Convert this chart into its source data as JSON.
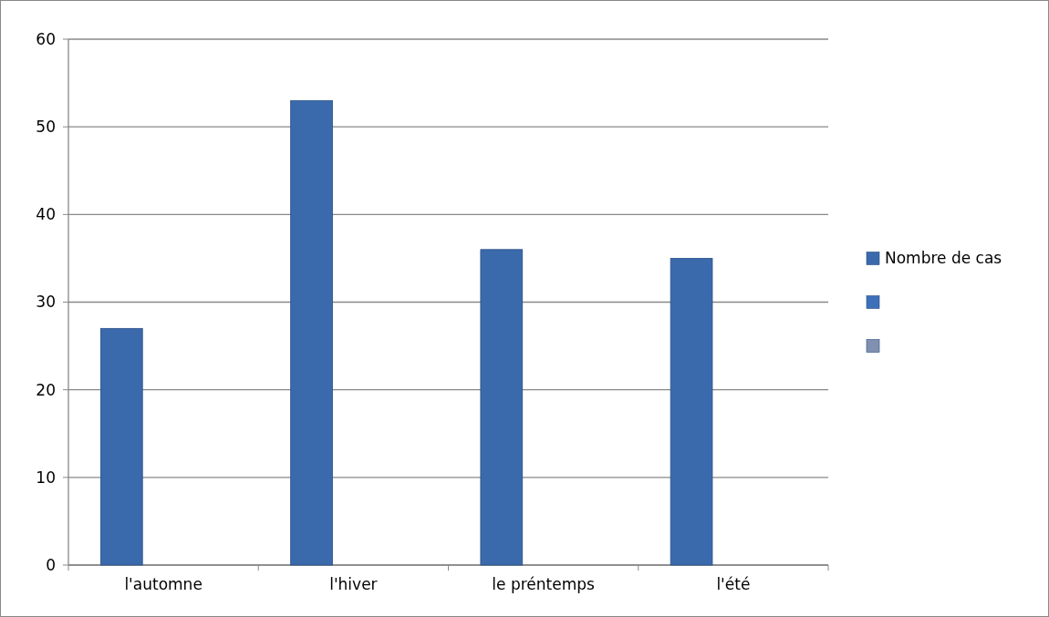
{
  "chart_data": {
    "type": "bar",
    "categories": [
      "l'automne",
      "l'hiver",
      "le préntemps",
      "l'été"
    ],
    "series": [
      {
        "name": "Nombre de cas",
        "color": "#3a6aab",
        "values": [
          27,
          53,
          36,
          35
        ]
      },
      {
        "color": "#3d70b8",
        "values": [
          null,
          null,
          null,
          null
        ]
      },
      {
        "color": "#8190b0",
        "values": [
          null,
          null,
          null,
          null
        ]
      }
    ],
    "ylim": [
      0,
      60
    ],
    "yticks": [
      0,
      10,
      20,
      30,
      40,
      50,
      60
    ],
    "grid": "y",
    "legend": "right"
  }
}
